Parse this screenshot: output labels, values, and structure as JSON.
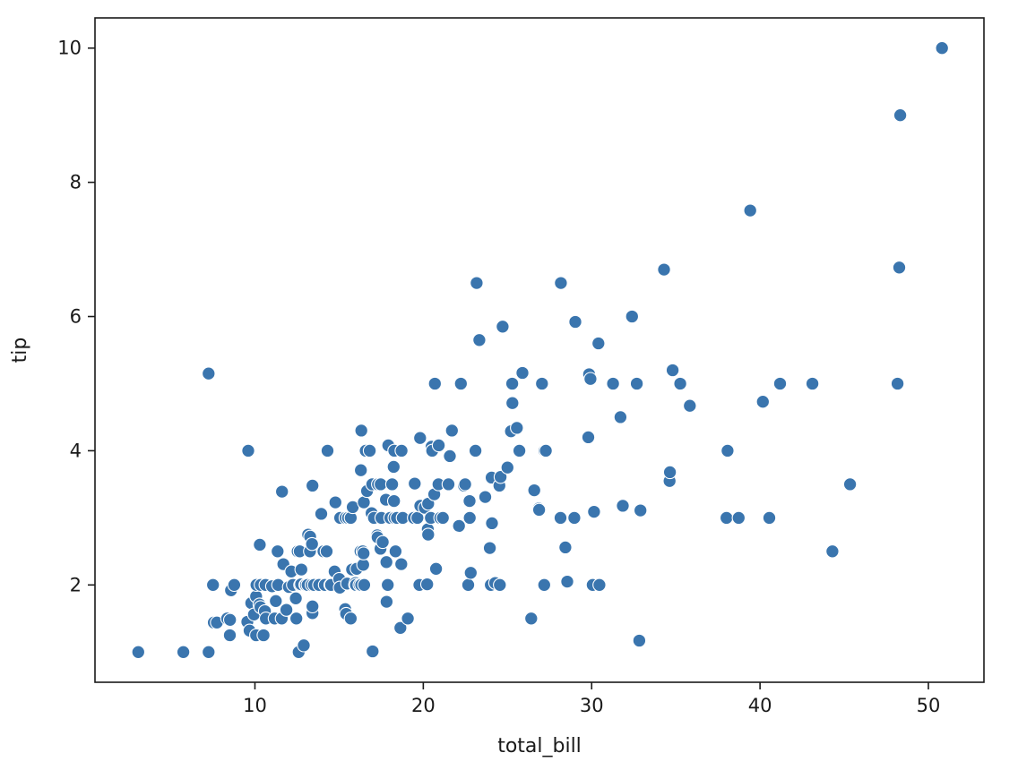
{
  "chart_data": {
    "type": "scatter",
    "title": "",
    "xlabel": "total_bill",
    "ylabel": "tip",
    "xlim": [
      0.5,
      53.3
    ],
    "ylim": [
      0.55,
      10.45
    ],
    "xticks": [
      10,
      20,
      30,
      40,
      50
    ],
    "yticks": [
      2,
      4,
      6,
      8,
      10
    ],
    "grid": false,
    "legend": "none",
    "colors": {
      "point_fill": "#3a75ae",
      "point_edge": "#ffffff",
      "axis": "#1a1a1a"
    },
    "points": [
      [
        3.07,
        1.0
      ],
      [
        5.75,
        1.0
      ],
      [
        7.25,
        1.0
      ],
      [
        7.25,
        5.15
      ],
      [
        7.51,
        2.0
      ],
      [
        7.56,
        1.44
      ],
      [
        7.74,
        1.44
      ],
      [
        8.35,
        1.5
      ],
      [
        8.51,
        1.25
      ],
      [
        8.52,
        1.48
      ],
      [
        8.58,
        1.92
      ],
      [
        8.77,
        2.0
      ],
      [
        9.55,
        1.45
      ],
      [
        9.6,
        4.0
      ],
      [
        9.68,
        1.32
      ],
      [
        9.78,
        1.73
      ],
      [
        9.94,
        1.56
      ],
      [
        10.07,
        1.83
      ],
      [
        10.07,
        1.25
      ],
      [
        10.09,
        2.0
      ],
      [
        10.27,
        1.71
      ],
      [
        10.29,
        2.6
      ],
      [
        10.33,
        1.67
      ],
      [
        10.34,
        2.0
      ],
      [
        10.51,
        1.25
      ],
      [
        10.59,
        1.61
      ],
      [
        10.63,
        2.0
      ],
      [
        10.65,
        1.5
      ],
      [
        11.02,
        1.98
      ],
      [
        11.17,
        1.5
      ],
      [
        11.24,
        1.76
      ],
      [
        11.35,
        2.5
      ],
      [
        11.38,
        2.0
      ],
      [
        11.59,
        1.5
      ],
      [
        11.61,
        3.39
      ],
      [
        11.69,
        2.31
      ],
      [
        11.87,
        1.63
      ],
      [
        12.02,
        1.97
      ],
      [
        12.16,
        2.2
      ],
      [
        12.26,
        2.0
      ],
      [
        12.43,
        1.8
      ],
      [
        12.46,
        1.5
      ],
      [
        12.54,
        2.5
      ],
      [
        12.6,
        1.0
      ],
      [
        12.66,
        2.5
      ],
      [
        12.69,
        2.0
      ],
      [
        12.74,
        2.01
      ],
      [
        12.76,
        2.23
      ],
      [
        12.9,
        1.1
      ],
      [
        13.0,
        2.0
      ],
      [
        13.03,
        2.0
      ],
      [
        13.13,
        2.0
      ],
      [
        13.16,
        2.75
      ],
      [
        13.27,
        2.5
      ],
      [
        13.28,
        2.72
      ],
      [
        13.37,
        2.0
      ],
      [
        13.39,
        2.61
      ],
      [
        13.42,
        3.48
      ],
      [
        13.42,
        1.58
      ],
      [
        13.42,
        1.68
      ],
      [
        13.51,
        2.0
      ],
      [
        13.81,
        2.0
      ],
      [
        13.94,
        3.06
      ],
      [
        14.07,
        2.5
      ],
      [
        14.15,
        2.0
      ],
      [
        14.26,
        2.5
      ],
      [
        14.31,
        4.0
      ],
      [
        14.48,
        2.0
      ],
      [
        14.52,
        2.0
      ],
      [
        14.73,
        2.2
      ],
      [
        14.78,
        3.23
      ],
      [
        15.01,
        2.09
      ],
      [
        15.04,
        1.96
      ],
      [
        15.06,
        3.0
      ],
      [
        15.36,
        1.64
      ],
      [
        15.38,
        3.0
      ],
      [
        15.42,
        1.57
      ],
      [
        15.48,
        2.02
      ],
      [
        15.53,
        3.0
      ],
      [
        15.69,
        1.5
      ],
      [
        15.69,
        3.0
      ],
      [
        15.77,
        2.23
      ],
      [
        15.81,
        3.16
      ],
      [
        15.95,
        2.0
      ],
      [
        15.98,
        2.03
      ],
      [
        16.0,
        2.0
      ],
      [
        16.04,
        2.24
      ],
      [
        16.21,
        2.0
      ],
      [
        16.27,
        2.5
      ],
      [
        16.29,
        3.71
      ],
      [
        16.31,
        2.0
      ],
      [
        16.32,
        4.3
      ],
      [
        16.4,
        2.5
      ],
      [
        16.43,
        2.3
      ],
      [
        16.45,
        2.47
      ],
      [
        16.47,
        3.23
      ],
      [
        16.49,
        2.0
      ],
      [
        16.58,
        4.0
      ],
      [
        16.66,
        3.4
      ],
      [
        16.82,
        4.0
      ],
      [
        16.93,
        3.07
      ],
      [
        16.97,
        3.5
      ],
      [
        16.99,
        1.01
      ],
      [
        17.07,
        3.0
      ],
      [
        17.26,
        2.74
      ],
      [
        17.29,
        2.71
      ],
      [
        17.31,
        3.5
      ],
      [
        17.46,
        2.54
      ],
      [
        17.47,
        3.5
      ],
      [
        17.51,
        3.0
      ],
      [
        17.59,
        2.64
      ],
      [
        17.78,
        3.27
      ],
      [
        17.81,
        2.34
      ],
      [
        17.82,
        1.75
      ],
      [
        17.89,
        2.0
      ],
      [
        17.92,
        4.08
      ],
      [
        18.04,
        3.0
      ],
      [
        18.15,
        3.5
      ],
      [
        18.24,
        3.76
      ],
      [
        18.26,
        3.25
      ],
      [
        18.28,
        4.0
      ],
      [
        18.29,
        3.0
      ],
      [
        18.35,
        2.5
      ],
      [
        18.43,
        3.0
      ],
      [
        18.64,
        1.36
      ],
      [
        18.69,
        2.31
      ],
      [
        18.71,
        4.0
      ],
      [
        18.78,
        3.0
      ],
      [
        19.08,
        1.5
      ],
      [
        19.44,
        3.0
      ],
      [
        19.49,
        3.51
      ],
      [
        19.65,
        3.0
      ],
      [
        19.77,
        2.0
      ],
      [
        19.81,
        4.19
      ],
      [
        19.82,
        3.18
      ],
      [
        20.08,
        3.15
      ],
      [
        20.23,
        2.01
      ],
      [
        20.27,
        2.83
      ],
      [
        20.29,
        2.75
      ],
      [
        20.29,
        3.21
      ],
      [
        20.45,
        3.0
      ],
      [
        20.49,
        4.06
      ],
      [
        20.53,
        4.0
      ],
      [
        20.65,
        3.35
      ],
      [
        20.69,
        5.0
      ],
      [
        20.76,
        2.24
      ],
      [
        20.9,
        3.5
      ],
      [
        20.92,
        4.08
      ],
      [
        21.01,
        3.0
      ],
      [
        21.16,
        3.0
      ],
      [
        21.5,
        3.5
      ],
      [
        21.58,
        3.92
      ],
      [
        21.7,
        4.3
      ],
      [
        22.12,
        2.88
      ],
      [
        22.23,
        5.0
      ],
      [
        22.42,
        3.48
      ],
      [
        22.49,
        3.5
      ],
      [
        22.67,
        2.0
      ],
      [
        22.75,
        3.25
      ],
      [
        22.76,
        3.0
      ],
      [
        22.82,
        2.18
      ],
      [
        23.1,
        4.0
      ],
      [
        23.17,
        6.5
      ],
      [
        23.33,
        5.65
      ],
      [
        23.68,
        3.31
      ],
      [
        23.95,
        2.55
      ],
      [
        24.01,
        2.0
      ],
      [
        24.06,
        3.6
      ],
      [
        24.08,
        2.92
      ],
      [
        24.27,
        2.03
      ],
      [
        24.52,
        3.48
      ],
      [
        24.55,
        2.0
      ],
      [
        24.59,
        3.61
      ],
      [
        24.71,
        5.85
      ],
      [
        25.0,
        3.75
      ],
      [
        25.21,
        4.29
      ],
      [
        25.28,
        5.0
      ],
      [
        25.29,
        4.71
      ],
      [
        25.56,
        4.34
      ],
      [
        25.71,
        4.0
      ],
      [
        25.89,
        5.16
      ],
      [
        26.41,
        1.5
      ],
      [
        26.59,
        3.41
      ],
      [
        26.86,
        3.14
      ],
      [
        26.88,
        3.12
      ],
      [
        27.05,
        5.0
      ],
      [
        27.18,
        2.0
      ],
      [
        27.2,
        4.0
      ],
      [
        27.28,
        4.0
      ],
      [
        28.15,
        3.0
      ],
      [
        28.17,
        6.5
      ],
      [
        28.44,
        2.56
      ],
      [
        28.55,
        2.05
      ],
      [
        28.97,
        3.0
      ],
      [
        29.03,
        5.92
      ],
      [
        29.8,
        4.2
      ],
      [
        29.85,
        5.14
      ],
      [
        29.93,
        5.07
      ],
      [
        30.06,
        2.0
      ],
      [
        30.14,
        3.09
      ],
      [
        30.4,
        5.6
      ],
      [
        30.46,
        2.0
      ],
      [
        31.27,
        5.0
      ],
      [
        31.71,
        4.5
      ],
      [
        31.85,
        3.18
      ],
      [
        32.4,
        6.0
      ],
      [
        32.68,
        5.0
      ],
      [
        32.83,
        1.17
      ],
      [
        32.9,
        3.11
      ],
      [
        34.3,
        6.7
      ],
      [
        34.63,
        3.55
      ],
      [
        34.65,
        3.68
      ],
      [
        34.81,
        5.2
      ],
      [
        35.26,
        5.0
      ],
      [
        35.83,
        4.67
      ],
      [
        38.01,
        3.0
      ],
      [
        38.07,
        4.0
      ],
      [
        38.73,
        3.0
      ],
      [
        39.42,
        7.58
      ],
      [
        40.17,
        4.73
      ],
      [
        40.55,
        3.0
      ],
      [
        41.19,
        5.0
      ],
      [
        43.11,
        5.0
      ],
      [
        44.3,
        2.5
      ],
      [
        45.35,
        3.5
      ],
      [
        48.17,
        5.0
      ],
      [
        48.27,
        6.73
      ],
      [
        48.33,
        9.0
      ],
      [
        50.81,
        10.0
      ]
    ]
  }
}
